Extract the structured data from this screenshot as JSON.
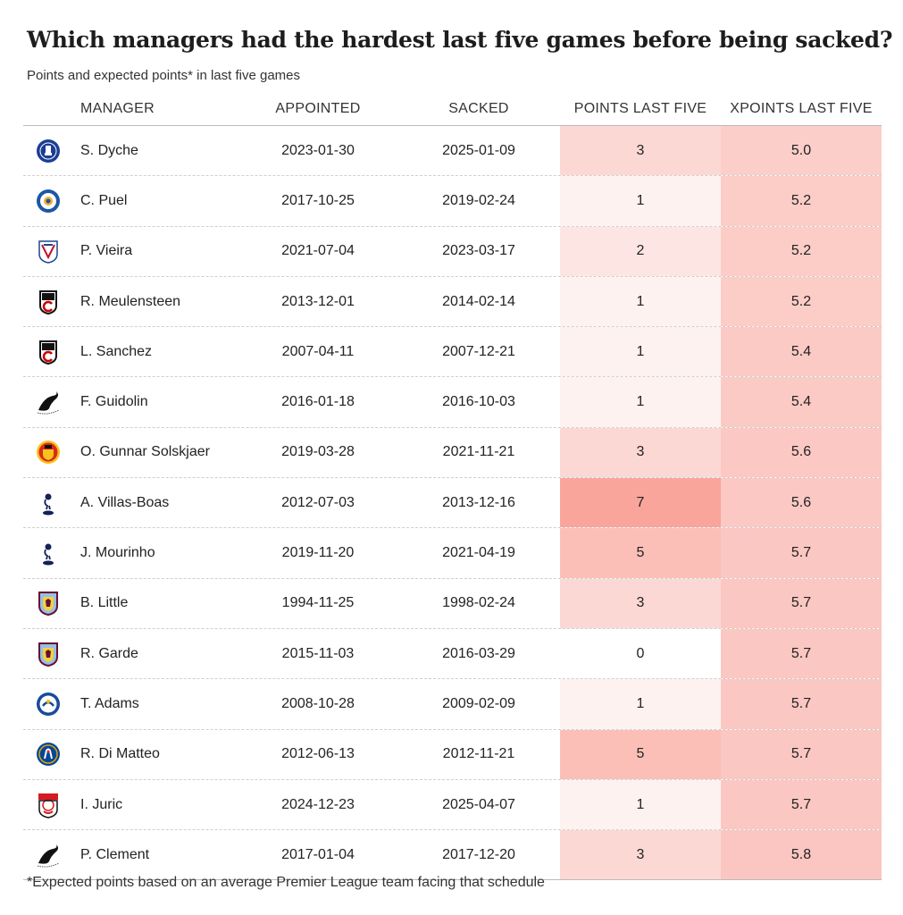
{
  "title": "Which managers had the hardest last five games before being sacked?",
  "subtitle": "Points and expected points* in last five games",
  "footnote": "*Expected points based on an average Premier League team facing that schedule",
  "colors": {
    "max_fill": "#f9a59c",
    "low_fill": "#ffffff"
  },
  "chart_data": {
    "type": "table",
    "columns": [
      "",
      "MANAGER",
      "APPOINTED",
      "SACKED",
      "POINTS LAST FIVE",
      "XPOINTS LAST FIVE"
    ],
    "rows": [
      {
        "club": "everton-crest",
        "manager": "S. Dyche",
        "appointed": "2023-01-30",
        "sacked": "2025-01-09",
        "points": "3",
        "xpoints": "5.0"
      },
      {
        "club": "leicester-crest",
        "manager": "C. Puel",
        "appointed": "2017-10-25",
        "sacked": "2019-02-24",
        "points": "1",
        "xpoints": "5.2"
      },
      {
        "club": "crystal-palace-crest",
        "manager": "P. Vieira",
        "appointed": "2021-07-04",
        "sacked": "2023-03-17",
        "points": "2",
        "xpoints": "5.2"
      },
      {
        "club": "fulham-crest",
        "manager": "R. Meulensteen",
        "appointed": "2013-12-01",
        "sacked": "2014-02-14",
        "points": "1",
        "xpoints": "5.2"
      },
      {
        "club": "fulham-crest",
        "manager": "L. Sanchez",
        "appointed": "2007-04-11",
        "sacked": "2007-12-21",
        "points": "1",
        "xpoints": "5.4"
      },
      {
        "club": "swansea-crest",
        "manager": "F. Guidolin",
        "appointed": "2016-01-18",
        "sacked": "2016-10-03",
        "points": "1",
        "xpoints": "5.4"
      },
      {
        "club": "man-utd-crest",
        "manager": "O. Gunnar Solskjaer",
        "appointed": "2019-03-28",
        "sacked": "2021-11-21",
        "points": "3",
        "xpoints": "5.6"
      },
      {
        "club": "tottenham-crest",
        "manager": "A. Villas-Boas",
        "appointed": "2012-07-03",
        "sacked": "2013-12-16",
        "points": "7",
        "xpoints": "5.6"
      },
      {
        "club": "tottenham-crest",
        "manager": "J. Mourinho",
        "appointed": "2019-11-20",
        "sacked": "2021-04-19",
        "points": "5",
        "xpoints": "5.7"
      },
      {
        "club": "aston-villa-crest",
        "manager": "B. Little",
        "appointed": "1994-11-25",
        "sacked": "1998-02-24",
        "points": "3",
        "xpoints": "5.7"
      },
      {
        "club": "aston-villa-crest",
        "manager": "R. Garde",
        "appointed": "2015-11-03",
        "sacked": "2016-03-29",
        "points": "0",
        "xpoints": "5.7"
      },
      {
        "club": "portsmouth-crest",
        "manager": "T. Adams",
        "appointed": "2008-10-28",
        "sacked": "2009-02-09",
        "points": "1",
        "xpoints": "5.7"
      },
      {
        "club": "chelsea-crest",
        "manager": "R. Di Matteo",
        "appointed": "2012-06-13",
        "sacked": "2012-11-21",
        "points": "5",
        "xpoints": "5.7"
      },
      {
        "club": "southampton-crest",
        "manager": "I. Juric",
        "appointed": "2024-12-23",
        "sacked": "2025-04-07",
        "points": "1",
        "xpoints": "5.7"
      },
      {
        "club": "swansea-crest",
        "manager": "P. Clement",
        "appointed": "2017-01-04",
        "sacked": "2017-12-20",
        "points": "3",
        "xpoints": "5.8"
      }
    ]
  }
}
